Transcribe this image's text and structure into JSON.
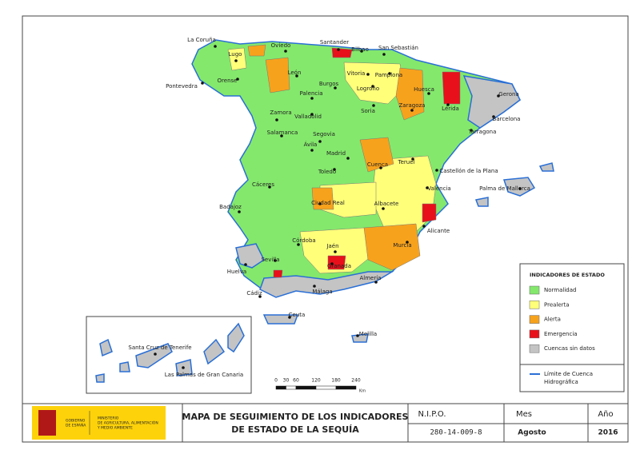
{
  "map": {
    "cities": [
      "La Coruña",
      "Lugo",
      "Oviedo",
      "Santander",
      "Bilbao",
      "San Sebastián",
      "Pontevedra",
      "Orense",
      "León",
      "Vitoria",
      "Pamplona",
      "Burgos",
      "Logroño",
      "Huesca",
      "Gerona",
      "Palencia",
      "Lérida",
      "Zaragoza",
      "Zamora",
      "Valladolid",
      "Soria",
      "Barcelona",
      "Tarragona",
      "Salamanca",
      "Segovia",
      "Ávila",
      "Madrid",
      "Cuenca",
      "Teruel",
      "Castellón de la Plana",
      "Toledo",
      "Palma de Mallorca",
      "Cáceres",
      "Valencia",
      "Ciudad Real",
      "Albacete",
      "Badajoz",
      "Alicante",
      "Córdoba",
      "Jaén",
      "Murcia",
      "Sevilla",
      "Granada",
      "Almería",
      "Huelva",
      "Málaga",
      "Cádiz",
      "Ceuta",
      "Melilla",
      "Santa Cruz de Tenerife",
      "Las Palmas de Gran Canaria"
    ],
    "scale_bar": {
      "ticks": [
        0,
        30,
        60,
        120,
        180,
        240
      ],
      "unit": "Km"
    }
  },
  "legend": {
    "title": "INDICADORES DE ESTADO",
    "items": [
      {
        "label": "Normalidad",
        "color": "#84e86c"
      },
      {
        "label": "Prealerta",
        "color": "#ffff7a"
      },
      {
        "label": "Alerta",
        "color": "#f7a21c"
      },
      {
        "label": "Emergencia",
        "color": "#e8101a"
      },
      {
        "label": "Cuencas sin datos",
        "color": "#c4c4c4"
      }
    ],
    "line_label": [
      "Límite de Cuenca",
      "Hidrográfica"
    ],
    "line_color": "#2a6fd6"
  },
  "footer": {
    "logo_left": [
      "GOBIERNO",
      "DE ESPAÑA"
    ],
    "logo_right": [
      "MINISTERIO",
      "DE AGRICULTURA, ALIMENTACIÓN",
      "Y MEDIO AMBIENTE"
    ],
    "title": [
      "MAPA DE SEGUIMIENTO DE LOS INDICADORES",
      "DE ESTADO DE LA SEQUÍA"
    ],
    "nipo_header": "N.I.P.O.",
    "nipo": "280-14-009-8",
    "month_header": "Mes",
    "month": "Agosto",
    "year_header": "Año",
    "year": "2016"
  }
}
